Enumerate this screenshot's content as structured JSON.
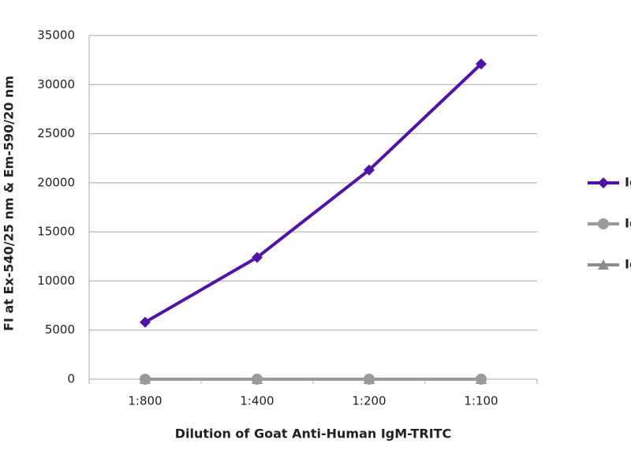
{
  "chart_data": {
    "type": "line",
    "y_label": "FI at Ex-540/25 nm & Em-590/20 nm",
    "x_label": "Dilution of Goat Anti-Human IgM-TRITC",
    "categories": [
      "1:800",
      "1:400",
      "1:200",
      "1:100"
    ],
    "series": [
      {
        "name": "IgM",
        "color": "#4f14a6",
        "marker": "diamond",
        "values": [
          5800,
          12400,
          21300,
          32100
        ]
      },
      {
        "name": "IgG",
        "color": "#9a9a9a",
        "marker": "circle",
        "values": [
          0,
          0,
          0,
          0
        ]
      },
      {
        "name": "IgA",
        "color": "#8c8c8c",
        "marker": "triangle",
        "values": [
          0,
          0,
          0,
          0
        ]
      }
    ],
    "ylim": [
      0,
      35000
    ],
    "yticks": [
      0,
      5000,
      10000,
      15000,
      20000,
      25000,
      30000,
      35000
    ],
    "grid": true,
    "legend": "right"
  }
}
